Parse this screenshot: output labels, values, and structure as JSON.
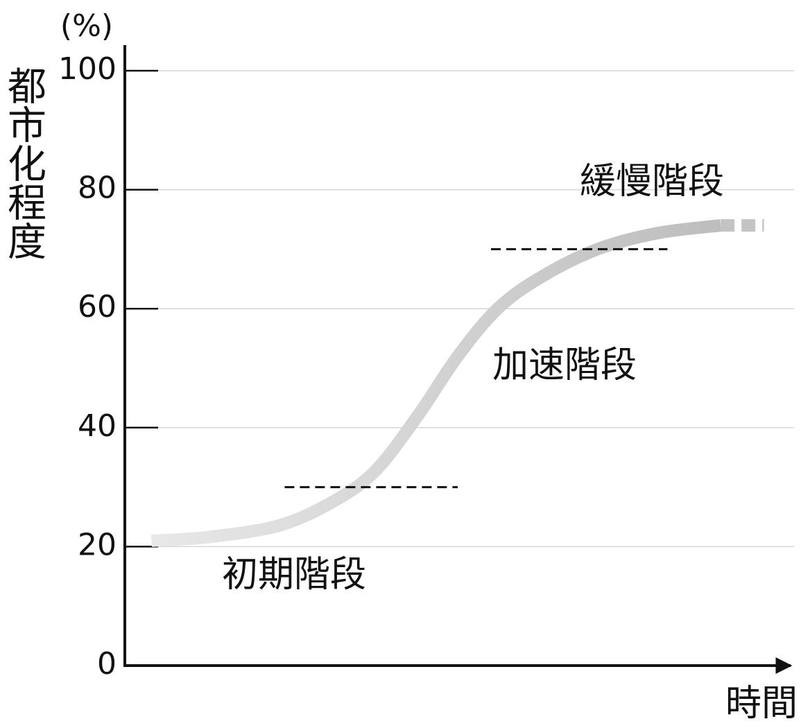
{
  "chart_data": {
    "type": "line",
    "y_unit": "(%)",
    "y_label": "都市化程度",
    "x_label": "時間",
    "xlim": [
      0,
      100
    ],
    "ylim": [
      0,
      100
    ],
    "yticks": [
      0,
      20,
      40,
      60,
      80,
      100
    ],
    "grid": true,
    "series": [
      {
        "x": [
          4,
          12.5,
          23,
          31,
          37.5,
          44,
          50,
          56,
          62.5,
          71,
          80,
          89.5
        ],
        "values": [
          21,
          21.6,
          23.5,
          27.4,
          32.6,
          42,
          52,
          60,
          65.3,
          70,
          72.7,
          74
        ],
        "gradient": [
          "#e8e8e8",
          "#bdbdbd"
        ],
        "style": "solid"
      },
      {
        "x": [
          89.5,
          96
        ],
        "values": [
          74,
          74
        ],
        "color": "#c4c4c4",
        "style": "dotted"
      }
    ],
    "reference_lines": [
      {
        "y": 30,
        "x": [
          24,
          50
        ]
      },
      {
        "y": 70,
        "x": [
          55,
          81.5
        ]
      }
    ],
    "annotations": [
      "初期階段",
      "加速階段",
      "緩慢階段"
    ]
  }
}
